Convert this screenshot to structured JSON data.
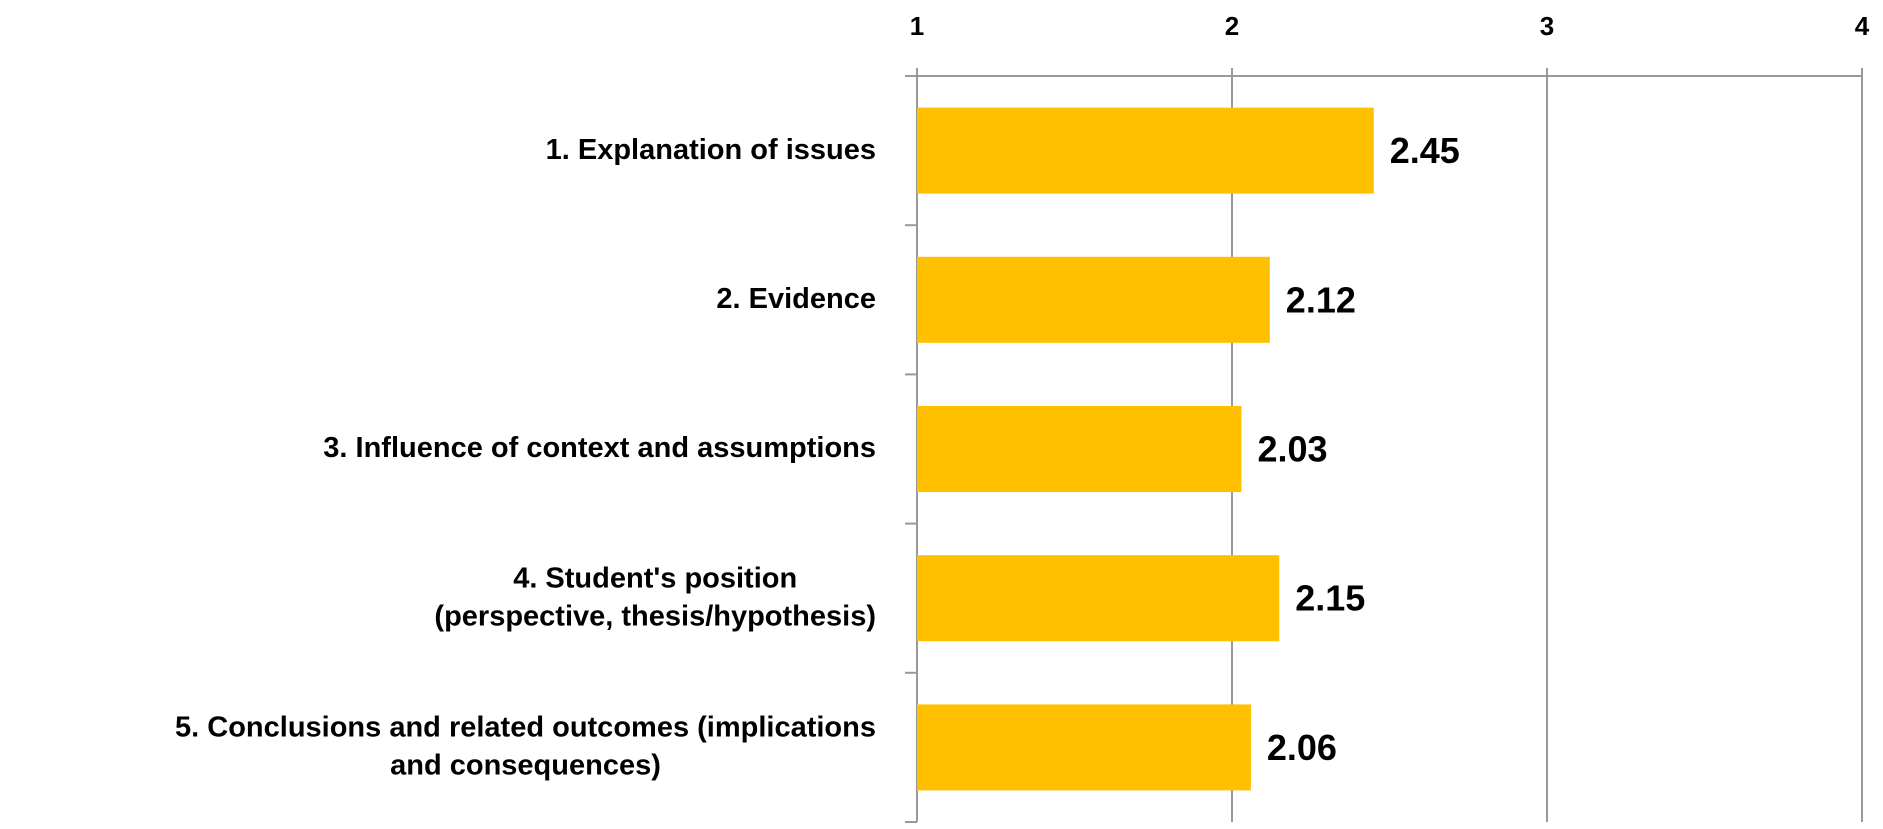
{
  "chart_data": {
    "type": "bar",
    "orientation": "horizontal",
    "categories": [
      "1. Explanation of issues",
      "2. Evidence",
      "3. Influence of context and assumptions",
      "4. Student's position\n(perspective, thesis/hypothesis)",
      "5. Conclusions and related outcomes (implications\nand consequences)"
    ],
    "values": [
      2.45,
      2.12,
      2.03,
      2.15,
      2.06
    ],
    "color": "#FFC000",
    "xlim": [
      1,
      4
    ],
    "xticks": [
      1,
      2,
      3,
      4
    ],
    "grid": true
  }
}
